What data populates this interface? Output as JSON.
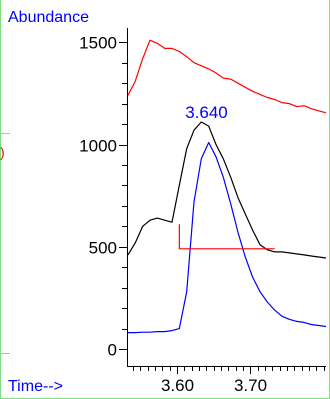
{
  "labels": {
    "y_axis_title": "Abundance",
    "x_axis_title": "Time-->",
    "clipped_left_text": ")"
  },
  "colors": {
    "frame": "#80e080",
    "axis": "#000000",
    "axis_text_blue": "#0000ff",
    "series_red": "#ff0000",
    "series_black": "#000000",
    "series_blue": "#0000ff",
    "baseline": "#ff0000"
  },
  "chart_data": {
    "type": "line",
    "title": "",
    "xlabel": "Time-->",
    "ylabel": "Abundance",
    "xlim": [
      3.533,
      3.803
    ],
    "ylim": [
      0,
      1560
    ],
    "x_ticks": [
      {
        "value": 3.6,
        "label": "3.60"
      },
      {
        "value": 3.7,
        "label": "3.70"
      }
    ],
    "y_ticks": [
      {
        "value": 0,
        "label": "0"
      },
      {
        "value": 500,
        "label": "500"
      },
      {
        "value": 1000,
        "label": "1000"
      },
      {
        "value": 1500,
        "label": "1500"
      }
    ],
    "grid": false,
    "legend": "none",
    "annotations": [
      {
        "text": "3.640",
        "x": 3.64,
        "y": 1130
      }
    ],
    "series": [
      {
        "color": "#ff0000",
        "x": [
          3.533,
          3.543,
          3.553,
          3.563,
          3.573,
          3.583,
          3.593,
          3.603,
          3.613,
          3.623,
          3.633,
          3.643,
          3.653,
          3.663,
          3.673,
          3.683,
          3.693,
          3.703,
          3.713,
          3.723,
          3.733,
          3.743,
          3.753,
          3.763,
          3.773,
          3.783,
          3.793,
          3.803
        ],
        "y": [
          1240,
          1310,
          1420,
          1510,
          1495,
          1470,
          1470,
          1455,
          1430,
          1400,
          1385,
          1370,
          1350,
          1325,
          1320,
          1300,
          1280,
          1260,
          1245,
          1230,
          1220,
          1205,
          1200,
          1185,
          1190,
          1175,
          1165,
          1155
        ]
      },
      {
        "color": "#000000",
        "x": [
          3.533,
          3.543,
          3.553,
          3.563,
          3.573,
          3.583,
          3.593,
          3.603,
          3.613,
          3.623,
          3.633,
          3.643,
          3.653,
          3.663,
          3.673,
          3.683,
          3.693,
          3.703,
          3.713,
          3.723,
          3.733,
          3.743,
          3.753,
          3.763,
          3.773,
          3.783,
          3.793,
          3.803
        ],
        "y": [
          460,
          520,
          600,
          630,
          640,
          630,
          620,
          800,
          980,
          1070,
          1110,
          1090,
          1000,
          930,
          840,
          740,
          660,
          580,
          510,
          485,
          475,
          475,
          470,
          465,
          460,
          455,
          450,
          445
        ]
      },
      {
        "color": "#0000ff",
        "x": [
          3.533,
          3.543,
          3.553,
          3.563,
          3.573,
          3.583,
          3.593,
          3.603,
          3.613,
          3.623,
          3.633,
          3.643,
          3.653,
          3.663,
          3.673,
          3.683,
          3.693,
          3.703,
          3.713,
          3.723,
          3.733,
          3.743,
          3.753,
          3.763,
          3.773,
          3.783,
          3.793,
          3.803
        ],
        "y": [
          80,
          80,
          82,
          82,
          85,
          85,
          90,
          100,
          280,
          720,
          930,
          1010,
          940,
          840,
          710,
          570,
          450,
          350,
          280,
          230,
          190,
          160,
          145,
          135,
          130,
          120,
          115,
          110
        ]
      }
    ],
    "baseline": {
      "color": "#ff0000",
      "vertical_x": 3.603,
      "vertical_from": 610,
      "horizontal_from": 3.603,
      "horizontal_to": 3.733,
      "y": 490
    }
  }
}
